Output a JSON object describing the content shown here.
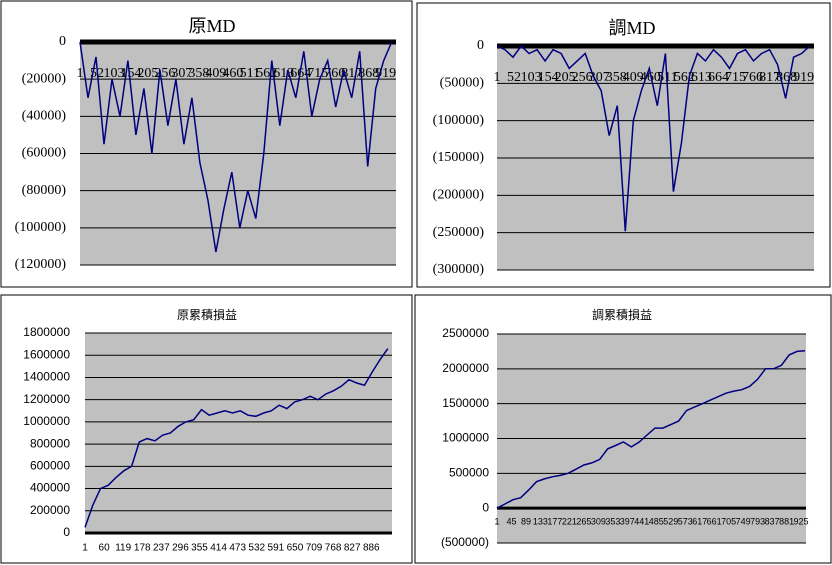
{
  "chart_data": [
    {
      "type": "line",
      "title": "原MD",
      "line_color": "#000080",
      "grid": true,
      "negative_tick_color": "#d00000",
      "x": [
        1,
        25,
        49,
        73,
        97,
        121,
        145,
        169,
        193,
        217,
        241,
        265,
        289,
        313,
        337,
        361,
        385,
        409,
        433,
        457,
        481,
        505,
        529,
        553,
        577,
        601,
        625,
        649,
        673,
        697,
        721,
        745,
        769,
        793,
        817,
        841,
        865,
        889,
        913,
        937
      ],
      "values": [
        0,
        -30000,
        -8000,
        -55000,
        -20000,
        -40000,
        -10000,
        -50000,
        -25000,
        -60000,
        -15000,
        -45000,
        -20000,
        -55000,
        -30000,
        -65000,
        -85000,
        -113000,
        -90000,
        -70000,
        -100000,
        -80000,
        -95000,
        -60000,
        -10000,
        -45000,
        -15000,
        -30000,
        -5000,
        -40000,
        -20000,
        -10000,
        -35000,
        -15000,
        -30000,
        -5000,
        -67000,
        -25000,
        -10000,
        0
      ],
      "xlim": [
        1,
        950
      ],
      "xticks": [
        1,
        52,
        103,
        154,
        205,
        256,
        307,
        358,
        409,
        460,
        511,
        562,
        613,
        664,
        715,
        766,
        817,
        868,
        919
      ],
      "ylim": [
        -120000,
        0
      ],
      "yticks": [
        0,
        {
          "value": -20000,
          "label": "(20000)"
        },
        {
          "value": -40000,
          "label": "(40000)"
        },
        {
          "value": -60000,
          "label": "(60000)"
        },
        {
          "value": -80000,
          "label": "(80000)"
        },
        {
          "value": -100000,
          "label": "(100000)"
        },
        {
          "value": -120000,
          "label": "(120000)"
        }
      ]
    },
    {
      "type": "line",
      "title": "調MD",
      "line_color": "#000080",
      "grid": true,
      "negative_tick_color": "#d00000",
      "x": [
        1,
        25,
        49,
        73,
        97,
        121,
        145,
        169,
        193,
        217,
        241,
        265,
        289,
        313,
        337,
        361,
        385,
        409,
        433,
        457,
        481,
        505,
        529,
        553,
        577,
        601,
        625,
        649,
        673,
        697,
        721,
        745,
        769,
        793,
        817,
        841,
        865,
        889,
        913,
        937
      ],
      "values": [
        0,
        -5000,
        -15000,
        0,
        -10000,
        -5000,
        -20000,
        -5000,
        -10000,
        -30000,
        -20000,
        -10000,
        -40000,
        -60000,
        -120000,
        -80000,
        -248000,
        -100000,
        -60000,
        -30000,
        -80000,
        -10000,
        -195000,
        -130000,
        -40000,
        -10000,
        -20000,
        -5000,
        -15000,
        -30000,
        -10000,
        -5000,
        -20000,
        -10000,
        -5000,
        -25000,
        -70000,
        -15000,
        -10000,
        0
      ],
      "xlim": [
        1,
        950
      ],
      "xticks": [
        1,
        52,
        103,
        154,
        205,
        256,
        307,
        358,
        409,
        460,
        511,
        562,
        613,
        664,
        715,
        766,
        817,
        868,
        919
      ],
      "ylim": [
        -300000,
        0
      ],
      "yticks": [
        0,
        {
          "value": -50000,
          "label": "(50000)"
        },
        {
          "value": -100000,
          "label": "(100000)"
        },
        {
          "value": -150000,
          "label": "(150000)"
        },
        {
          "value": -200000,
          "label": "(200000)"
        },
        {
          "value": -250000,
          "label": "(250000)"
        },
        {
          "value": -300000,
          "label": "(300000)"
        }
      ]
    },
    {
      "type": "line",
      "title": "原累積損益",
      "line_color": "#000080",
      "grid": true,
      "negative_tick_color": "#d00000",
      "x": [
        1,
        25,
        49,
        73,
        97,
        121,
        145,
        169,
        193,
        217,
        241,
        265,
        289,
        313,
        337,
        361,
        385,
        409,
        433,
        457,
        481,
        505,
        529,
        553,
        577,
        601,
        625,
        649,
        673,
        697,
        721,
        745,
        769,
        793,
        817,
        841,
        865,
        889,
        913,
        937
      ],
      "values": [
        50000,
        250000,
        400000,
        430000,
        500000,
        560000,
        600000,
        820000,
        850000,
        830000,
        880000,
        900000,
        960000,
        1000000,
        1020000,
        1110000,
        1060000,
        1080000,
        1100000,
        1080000,
        1100000,
        1060000,
        1050000,
        1080000,
        1100000,
        1150000,
        1120000,
        1180000,
        1200000,
        1230000,
        1200000,
        1250000,
        1280000,
        1320000,
        1380000,
        1350000,
        1330000,
        1450000,
        1560000,
        1660000
      ],
      "xlim": [
        1,
        950
      ],
      "xticks": [
        1,
        60,
        119,
        178,
        237,
        296,
        355,
        414,
        473,
        532,
        591,
        650,
        709,
        768,
        827,
        886
      ],
      "ylim": [
        0,
        1800000
      ],
      "yticks": [
        0,
        200000,
        400000,
        600000,
        800000,
        1000000,
        1200000,
        1400000,
        1600000,
        1800000
      ]
    },
    {
      "type": "line",
      "title": "調累積損益",
      "line_color": "#000080",
      "grid": true,
      "negative_tick_color": "#d00000",
      "x": [
        1,
        25,
        49,
        73,
        97,
        121,
        145,
        169,
        193,
        217,
        241,
        265,
        289,
        313,
        337,
        361,
        385,
        409,
        433,
        457,
        481,
        505,
        529,
        553,
        577,
        601,
        625,
        649,
        673,
        697,
        721,
        745,
        769,
        793,
        817,
        841,
        865,
        889,
        913,
        937
      ],
      "values": [
        0,
        60000,
        120000,
        150000,
        260000,
        380000,
        420000,
        450000,
        470000,
        500000,
        560000,
        620000,
        650000,
        700000,
        850000,
        900000,
        950000,
        880000,
        950000,
        1050000,
        1150000,
        1150000,
        1200000,
        1250000,
        1400000,
        1450000,
        1500000,
        1550000,
        1600000,
        1650000,
        1680000,
        1700000,
        1750000,
        1850000,
        2000000,
        2000000,
        2050000,
        2200000,
        2250000,
        2260000
      ],
      "xlim": [
        1,
        940
      ],
      "xticks": [
        1,
        45,
        89,
        133,
        177,
        221,
        265,
        309,
        353,
        397,
        441,
        485,
        529,
        573,
        617,
        661,
        705,
        749,
        793,
        837,
        881,
        925
      ],
      "ylim": [
        -500000,
        2500000
      ],
      "yticks": [
        {
          "value": -500000,
          "label": "(500000)"
        },
        0,
        500000,
        1000000,
        1500000,
        2000000,
        2500000
      ]
    }
  ]
}
